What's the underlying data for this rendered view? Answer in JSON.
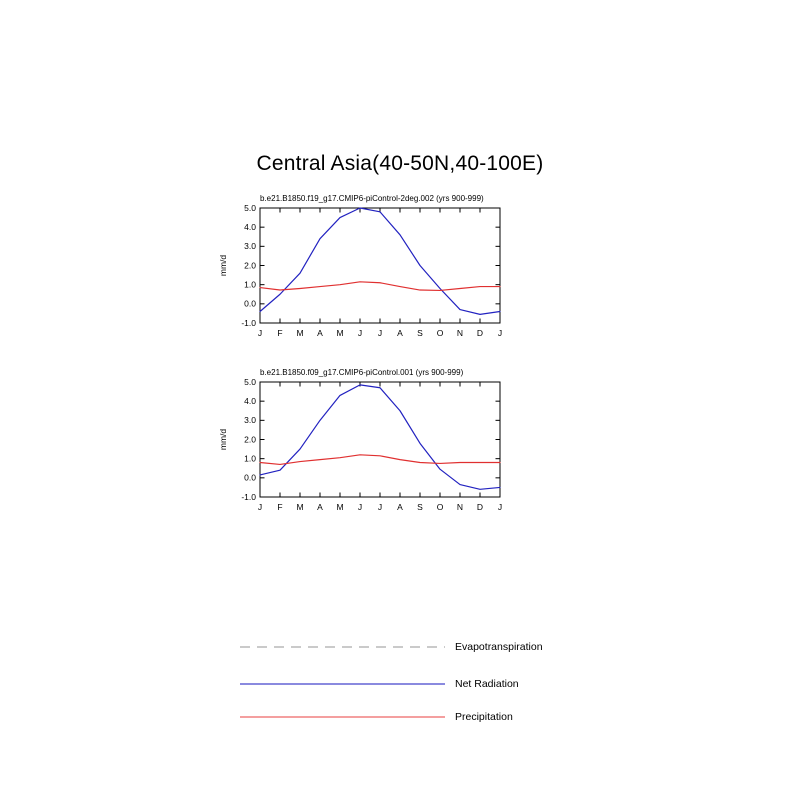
{
  "title": "Central Asia(40-50N,40-100E)",
  "legend": [
    {
      "label": "Evapotranspiration",
      "color": "#aaaaaa",
      "style": "dashed"
    },
    {
      "label": "Net Radiation",
      "color": "#4444cc",
      "style": "solid"
    },
    {
      "label": "Precipitation",
      "color": "#ee6666",
      "style": "solid"
    }
  ],
  "chart_data": [
    {
      "type": "line",
      "subtitle": "b.e21.B1850.f19_g17.CMIP6-piControl-2deg.002 (yrs 900-999)",
      "ylabel": "mm/d",
      "ylim": [
        -1.0,
        5.0
      ],
      "yticks": [
        "5.0",
        "4.0",
        "3.0",
        "2.0",
        "1.0",
        "0.0",
        "-1.0"
      ],
      "categories": [
        "J",
        "F",
        "M",
        "A",
        "M",
        "J",
        "J",
        "A",
        "S",
        "O",
        "N",
        "D",
        "J"
      ],
      "grid": false,
      "series": [
        {
          "name": "Net Radiation",
          "color": "#2222c0",
          "values": [
            -0.4,
            0.5,
            1.6,
            3.4,
            4.5,
            5.0,
            4.8,
            3.6,
            2.0,
            0.8,
            -0.3,
            -0.55,
            -0.4
          ]
        },
        {
          "name": "Precipitation",
          "color": "#e03030",
          "values": [
            0.85,
            0.72,
            0.8,
            0.9,
            1.0,
            1.15,
            1.1,
            0.9,
            0.72,
            0.7,
            0.8,
            0.9,
            0.9
          ]
        }
      ]
    },
    {
      "type": "line",
      "subtitle": "b.e21.B1850.f09_g17.CMIP6-piControl.001 (yrs 900-999)",
      "ylabel": "mm/d",
      "ylim": [
        -1.0,
        5.0
      ],
      "yticks": [
        "5.0",
        "4.0",
        "3.0",
        "2.0",
        "1.0",
        "0.0",
        "-1.0"
      ],
      "categories": [
        "J",
        "F",
        "M",
        "A",
        "M",
        "J",
        "J",
        "A",
        "S",
        "O",
        "N",
        "D",
        "J"
      ],
      "grid": false,
      "series": [
        {
          "name": "Net Radiation",
          "color": "#2222c0",
          "values": [
            0.15,
            0.4,
            1.5,
            3.0,
            4.3,
            4.85,
            4.7,
            3.5,
            1.8,
            0.45,
            -0.35,
            -0.6,
            -0.5
          ]
        },
        {
          "name": "Precipitation",
          "color": "#e03030",
          "values": [
            0.8,
            0.7,
            0.85,
            0.95,
            1.05,
            1.2,
            1.15,
            0.95,
            0.8,
            0.75,
            0.8,
            0.8,
            0.8
          ]
        }
      ]
    }
  ]
}
